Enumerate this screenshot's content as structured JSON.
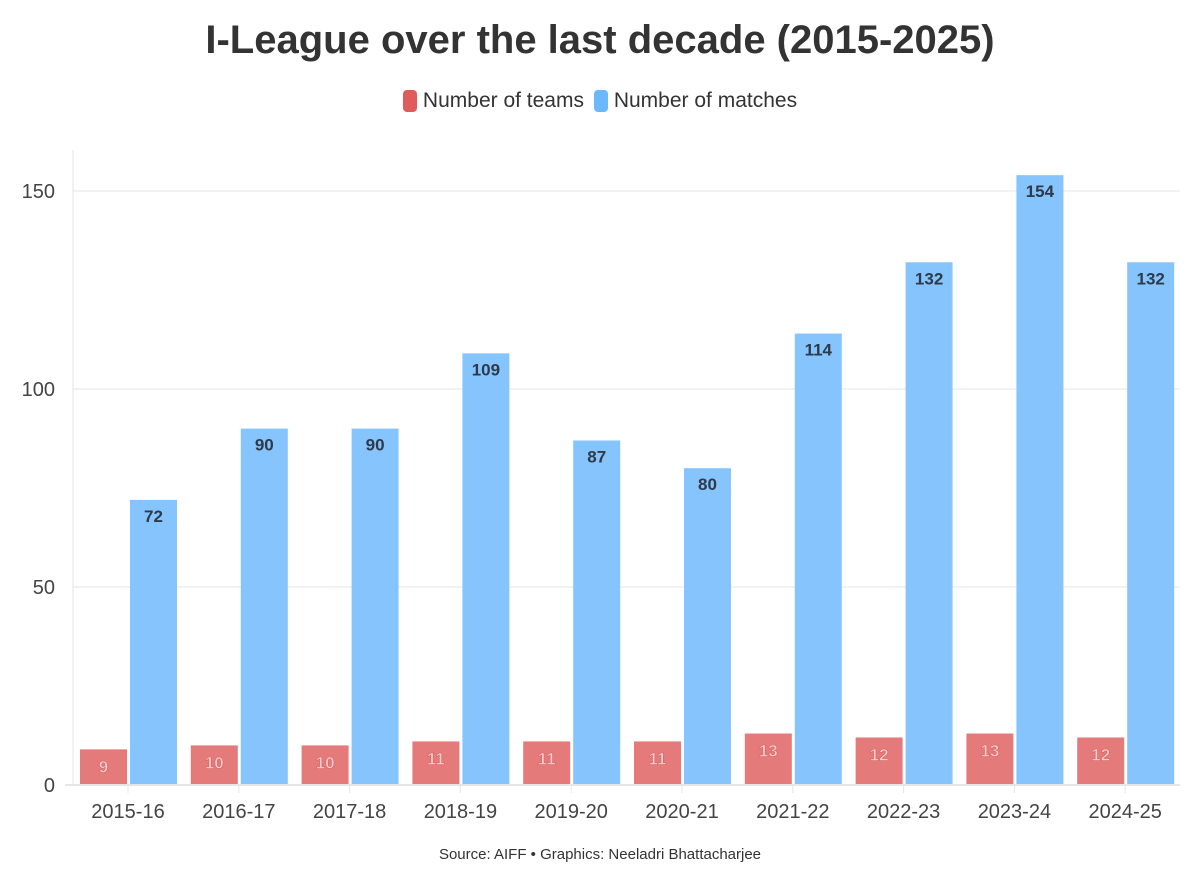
{
  "chart_data": {
    "type": "bar",
    "title": "I-League over the last decade (2015-2025)",
    "categories": [
      "2015-16",
      "2016-17",
      "2017-18",
      "2018-19",
      "2019-20",
      "2020-21",
      "2021-22",
      "2022-23",
      "2023-24",
      "2024-25"
    ],
    "series": [
      {
        "name": "Number of teams",
        "color": "#e47a7a",
        "values": [
          9,
          10,
          10,
          11,
          11,
          11,
          13,
          12,
          13,
          12
        ]
      },
      {
        "name": "Number of matches",
        "color": "#85c4fc",
        "values": [
          72,
          90,
          90,
          109,
          87,
          80,
          114,
          132,
          154,
          132
        ]
      }
    ],
    "yticks": [
      0,
      50,
      100,
      150
    ],
    "ylim": [
      0,
      160
    ],
    "xlabel": "",
    "ylabel": "",
    "grid": true,
    "legend": "top-center",
    "legend_colors": [
      "#e05c5c",
      "#6bb8fc"
    ],
    "source": "Source: AIFF • Graphics: Neeladri Bhattacharjee"
  }
}
